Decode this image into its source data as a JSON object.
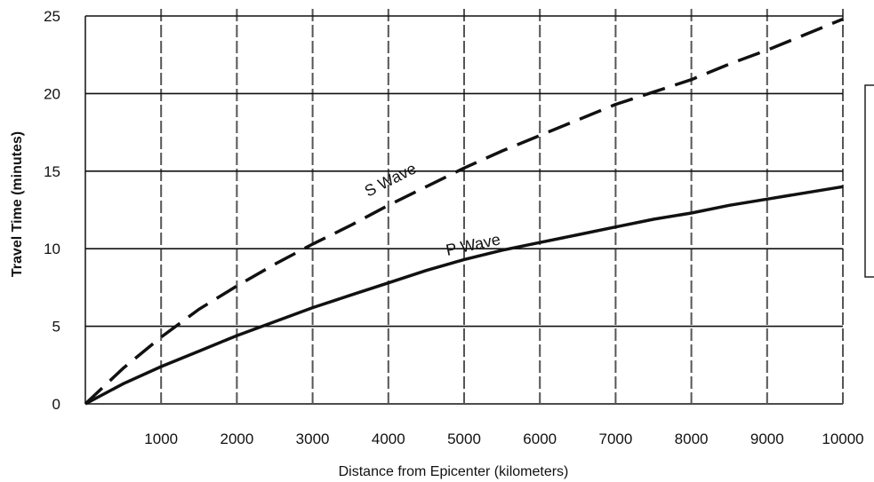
{
  "chart_data": {
    "type": "line",
    "title": "",
    "xlabel": "Distance from Epicenter (kilometers)",
    "ylabel": "Travel Time (minutes)",
    "xlim": [
      0,
      10000
    ],
    "ylim": [
      0,
      25
    ],
    "x_ticks": [
      1000,
      2000,
      3000,
      4000,
      5000,
      6000,
      7000,
      8000,
      9000,
      10000
    ],
    "x_tick_labels": [
      "1000",
      "2000",
      "3000",
      "4000",
      "5000",
      "6000",
      "7000",
      "8000",
      "9000",
      "10000"
    ],
    "y_ticks": [
      0,
      5,
      10,
      15,
      20,
      25
    ],
    "y_tick_labels": [
      "0",
      "5",
      "10",
      "15",
      "20",
      "25"
    ],
    "grid": true,
    "legend": "none",
    "series": [
      {
        "name": "S Wave",
        "style": "dashed",
        "x": [
          0,
          500,
          1000,
          1500,
          2000,
          2500,
          3000,
          3500,
          4000,
          4500,
          5000,
          5500,
          6000,
          6500,
          7000,
          7500,
          8000,
          8500,
          9000,
          9500,
          10000
        ],
        "y": [
          0,
          2.3,
          4.3,
          6.1,
          7.6,
          9.0,
          10.3,
          11.5,
          12.8,
          14.0,
          15.2,
          16.3,
          17.3,
          18.3,
          19.3,
          20.1,
          20.9,
          21.9,
          22.8,
          23.8,
          24.8
        ]
      },
      {
        "name": "P Wave",
        "style": "solid",
        "x": [
          0,
          500,
          1000,
          1500,
          2000,
          2500,
          3000,
          3500,
          4000,
          4500,
          5000,
          5500,
          6000,
          6500,
          7000,
          7500,
          8000,
          8500,
          9000,
          9500,
          10000
        ],
        "y": [
          0,
          1.3,
          2.4,
          3.4,
          4.4,
          5.3,
          6.2,
          7.0,
          7.8,
          8.6,
          9.3,
          9.9,
          10.4,
          10.9,
          11.4,
          11.9,
          12.3,
          12.8,
          13.2,
          13.6,
          14.0
        ]
      }
    ]
  },
  "annotations": {
    "s_wave_label": "S Wave",
    "p_wave_label": "P Wave"
  },
  "colors": {
    "line": "#111111",
    "grid_vertical": "#555555",
    "grid_horizontal": "#111111"
  }
}
